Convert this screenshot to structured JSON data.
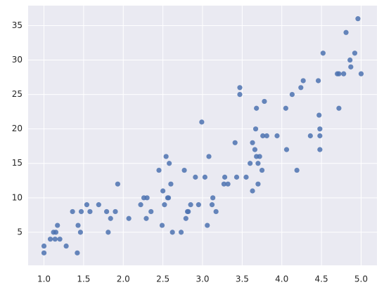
{
  "chart_data": {
    "type": "scatter",
    "color": "#4c72b0",
    "grid": true,
    "xlim": [
      0.8,
      5.2
    ],
    "ylim": [
      0.2,
      37.9
    ],
    "xticks": [
      {
        "value": 1,
        "label": "1.0"
      },
      {
        "value": 1.5,
        "label": "1.5"
      },
      {
        "value": 2,
        "label": "2.0"
      },
      {
        "value": 2.5,
        "label": "2.5"
      },
      {
        "value": 3,
        "label": "3.0"
      },
      {
        "value": 3.5,
        "label": "3.5"
      },
      {
        "value": 4,
        "label": "4.0"
      },
      {
        "value": 4.5,
        "label": "4.5"
      },
      {
        "value": 5,
        "label": "5.0"
      }
    ],
    "yticks": [
      5,
      10,
      15,
      20,
      25,
      30,
      35
    ],
    "x": [
      1.0,
      1.0,
      1.08,
      1.12,
      1.14,
      1.15,
      1.17,
      1.2,
      1.28,
      1.36,
      1.42,
      1.43,
      1.47,
      1.46,
      1.54,
      1.58,
      1.69,
      1.79,
      1.81,
      1.84,
      1.9,
      1.93,
      2.07,
      2.22,
      2.26,
      2.3,
      2.29,
      2.35,
      2.45,
      2.49,
      2.5,
      2.52,
      2.54,
      2.56,
      2.57,
      2.58,
      2.6,
      2.62,
      2.73,
      2.77,
      2.79,
      2.81,
      2.82,
      2.85,
      2.91,
      2.95,
      2.99,
      3.03,
      3.06,
      3.08,
      3.12,
      3.13,
      3.17,
      3.27,
      3.28,
      3.32,
      3.41,
      3.43,
      3.47,
      3.47,
      3.55,
      3.6,
      3.63,
      3.63,
      3.66,
      3.67,
      3.68,
      3.68,
      3.7,
      3.7,
      3.72,
      3.75,
      3.76,
      3.78,
      3.81,
      3.94,
      4.05,
      4.06,
      4.13,
      4.19,
      4.24,
      4.27,
      4.36,
      4.46,
      4.47,
      4.48,
      4.48,
      4.48,
      4.52,
      4.7,
      4.72,
      4.72,
      4.78,
      4.81,
      4.86,
      4.87,
      4.92,
      4.96,
      5.0
    ],
    "values": [
      2,
      3,
      4,
      5,
      4,
      5,
      6,
      4,
      3,
      8,
      2,
      6,
      8,
      5,
      9,
      8,
      9,
      8,
      5,
      7,
      8,
      12,
      7,
      9,
      10,
      10,
      7,
      8,
      14,
      6,
      11,
      9,
      16,
      10,
      10,
      15,
      12,
      5,
      5,
      14,
      7,
      8,
      8,
      9,
      13,
      9,
      21,
      13,
      6,
      16,
      9,
      10,
      8,
      12,
      13,
      12,
      18,
      13,
      26,
      25,
      13,
      15,
      18,
      11,
      17,
      20,
      16,
      23,
      15,
      12,
      16,
      14,
      19,
      24,
      19,
      19,
      23,
      17,
      25,
      14,
      26,
      27,
      19,
      27,
      22,
      20,
      19,
      17,
      31,
      28,
      28,
      23,
      28,
      34,
      30,
      29,
      31,
      36,
      28
    ]
  }
}
